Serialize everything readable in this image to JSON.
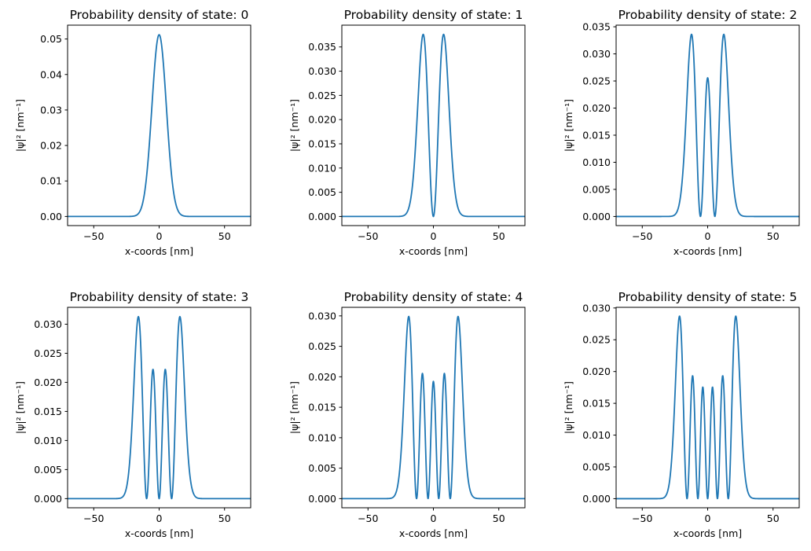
{
  "figure": {
    "background": "#ffffff",
    "line_color": "#1f77b4"
  },
  "chart_data": [
    {
      "type": "line",
      "title": "Probability density of state: 0",
      "xlabel": "x-coords [nm]",
      "ylabel": "|ψ|² [nm⁻¹]",
      "xlim": [
        -70,
        70
      ],
      "ylim": [
        -0.00257,
        0.0539
      ],
      "xticks": [
        -50,
        0,
        50
      ],
      "xtick_labels": [
        "−50",
        "0",
        "50"
      ],
      "yticks": [
        0,
        0.01,
        0.02,
        0.03,
        0.04,
        0.05
      ],
      "ytick_labels": [
        "0.00",
        "0.01",
        "0.02",
        "0.03",
        "0.04",
        "0.05"
      ],
      "series": [
        {
          "state": 0,
          "sigma_nm": 7.8,
          "x_range": [
            -70,
            70
          ],
          "peak": 0.0512
        }
      ],
      "grid": false
    },
    {
      "type": "line",
      "title": "Probability density of state: 1",
      "xlabel": "x-coords [nm]",
      "ylabel": "|ψ|² [nm⁻¹]",
      "xlim": [
        -70,
        70
      ],
      "ylim": [
        -0.00188,
        0.0395
      ],
      "xticks": [
        -50,
        0,
        50
      ],
      "xtick_labels": [
        "−50",
        "0",
        "50"
      ],
      "yticks": [
        0,
        0.005,
        0.01,
        0.015,
        0.02,
        0.025,
        0.03,
        0.035
      ],
      "ytick_labels": [
        "0.000",
        "0.005",
        "0.010",
        "0.015",
        "0.020",
        "0.025",
        "0.030",
        "0.035"
      ],
      "series": [
        {
          "state": 1,
          "sigma_nm": 7.8,
          "x_range": [
            -70,
            70
          ],
          "peak": 0.0376
        }
      ],
      "grid": false
    },
    {
      "type": "line",
      "title": "Probability density of state: 2",
      "xlabel": "x-coords [nm]",
      "ylabel": "|ψ|² [nm⁻¹]",
      "xlim": [
        -70,
        70
      ],
      "ylim": [
        -0.00168,
        0.0353
      ],
      "xticks": [
        -50,
        0,
        50
      ],
      "xtick_labels": [
        "−50",
        "0",
        "50"
      ],
      "yticks": [
        0,
        0.005,
        0.01,
        0.015,
        0.02,
        0.025,
        0.03,
        0.035
      ],
      "ytick_labels": [
        "0.000",
        "0.005",
        "0.010",
        "0.015",
        "0.020",
        "0.025",
        "0.030",
        "0.035"
      ],
      "series": [
        {
          "state": 2,
          "sigma_nm": 7.8,
          "x_range": [
            -70,
            70
          ],
          "peak": 0.0336
        }
      ],
      "grid": false
    },
    {
      "type": "line",
      "title": "Probability density of state: 3",
      "xlabel": "x-coords [nm]",
      "ylabel": "|ψ|² [nm⁻¹]",
      "xlim": [
        -70,
        70
      ],
      "ylim": [
        -0.00157,
        0.0329
      ],
      "xticks": [
        -50,
        0,
        50
      ],
      "xtick_labels": [
        "−50",
        "0",
        "50"
      ],
      "yticks": [
        0,
        0.005,
        0.01,
        0.015,
        0.02,
        0.025,
        0.03
      ],
      "ytick_labels": [
        "0.000",
        "0.005",
        "0.010",
        "0.015",
        "0.020",
        "0.025",
        "0.030"
      ],
      "series": [
        {
          "state": 3,
          "sigma_nm": 7.8,
          "x_range": [
            -70,
            70
          ],
          "peak": 0.0313
        }
      ],
      "grid": false
    },
    {
      "type": "line",
      "title": "Probability density of state: 4",
      "xlabel": "x-coords [nm]",
      "ylabel": "|ψ|² [nm⁻¹]",
      "xlim": [
        -70,
        70
      ],
      "ylim": [
        -0.0015,
        0.0314
      ],
      "xticks": [
        -50,
        0,
        50
      ],
      "xtick_labels": [
        "−50",
        "0",
        "50"
      ],
      "yticks": [
        0,
        0.005,
        0.01,
        0.015,
        0.02,
        0.025,
        0.03
      ],
      "ytick_labels": [
        "0.000",
        "0.005",
        "0.010",
        "0.015",
        "0.020",
        "0.025",
        "0.030"
      ],
      "series": [
        {
          "state": 4,
          "sigma_nm": 7.8,
          "x_range": [
            -70,
            70
          ],
          "peak": 0.0299
        }
      ],
      "grid": false
    },
    {
      "type": "line",
      "title": "Probability density of state: 5",
      "xlabel": "x-coords [nm]",
      "ylabel": "|ψ|² [nm⁻¹]",
      "xlim": [
        -70,
        70
      ],
      "ylim": [
        -0.00143,
        0.0301
      ],
      "xticks": [
        -50,
        0,
        50
      ],
      "xtick_labels": [
        "−50",
        "0",
        "50"
      ],
      "yticks": [
        0,
        0.005,
        0.01,
        0.015,
        0.02,
        0.025,
        0.03
      ],
      "ytick_labels": [
        "0.000",
        "0.005",
        "0.010",
        "0.015",
        "0.020",
        "0.025",
        "0.030"
      ],
      "series": [
        {
          "state": 5,
          "sigma_nm": 7.8,
          "x_range": [
            -70,
            70
          ],
          "peak": 0.0287
        }
      ],
      "grid": false
    }
  ]
}
